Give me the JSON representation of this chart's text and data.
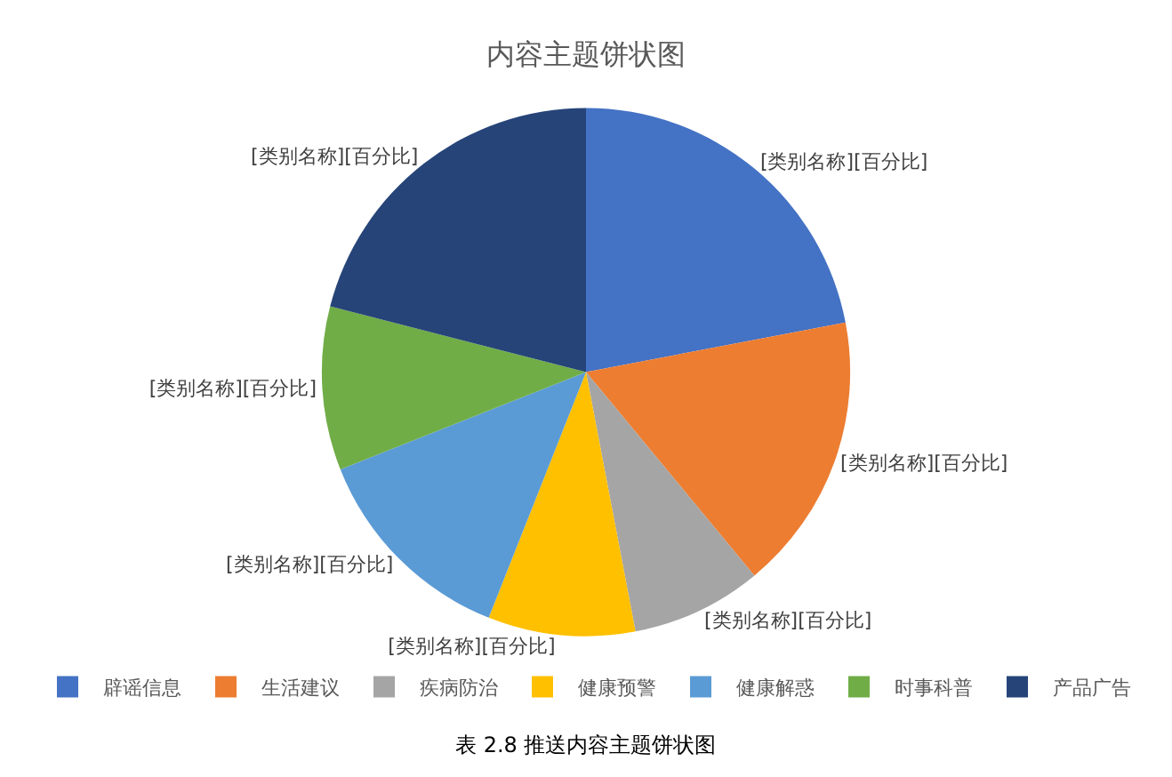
{
  "chart_data": {
    "type": "pie",
    "title": "内容主题饼状图",
    "categories": [
      "辟谣信息",
      "生活建议",
      "疾病防治",
      "健康预警",
      "健康解惑",
      "时事科普",
      "产品广告"
    ],
    "values": [
      22,
      17,
      8,
      9,
      13,
      10,
      21
    ],
    "colors": [
      "#4472c4",
      "#ed7d31",
      "#a5a5a5",
      "#ffc000",
      "#5b9bd5",
      "#70ad47",
      "#264478"
    ],
    "value_labels": [
      "[类别名称][百分比]",
      "[类别名称][百分比]",
      "[类别名称][百分比]",
      "[类别名称][百分比]",
      "[类别名称][百分比]",
      "[类别名称][百分比]",
      "[类别名称][百分比]"
    ],
    "legend": "bottom",
    "annotations": [
      "表 2.8 推送内容主题饼状图"
    ]
  }
}
